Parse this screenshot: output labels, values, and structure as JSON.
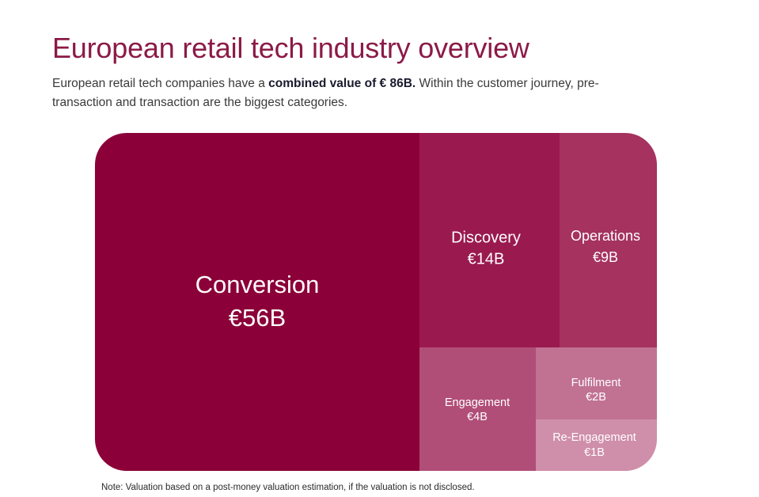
{
  "header": {
    "title": "European retail tech industry overview",
    "subtitle_part1": "European retail tech companies have a ",
    "subtitle_bold": "combined value of € 86B.",
    "subtitle_part2": " Within the customer journey, pre-transaction and transaction are the biggest categories."
  },
  "chart_data": {
    "type": "treemap",
    "unit": "€B",
    "total": 86,
    "items": [
      {
        "name": "Conversion",
        "label": "€56B",
        "value": 56,
        "color": "#8b0038"
      },
      {
        "name": "Discovery",
        "label": "€14B",
        "value": 14,
        "color": "#9a1a50"
      },
      {
        "name": "Operations",
        "label": "€9B",
        "value": 9,
        "color": "#a5325f"
      },
      {
        "name": "Engagement",
        "label": "€4B",
        "value": 4,
        "color": "#b14e78"
      },
      {
        "name": "Fulfilment",
        "label": "€2B",
        "value": 2,
        "color": "#c17293"
      },
      {
        "name": "Re-Engagement",
        "label": "€1B",
        "value": 1,
        "color": "#cf8ea9"
      }
    ]
  },
  "footer": {
    "note": "Note: Valuation based on a post-money valuation estimation, if the valuation is not disclosed."
  }
}
